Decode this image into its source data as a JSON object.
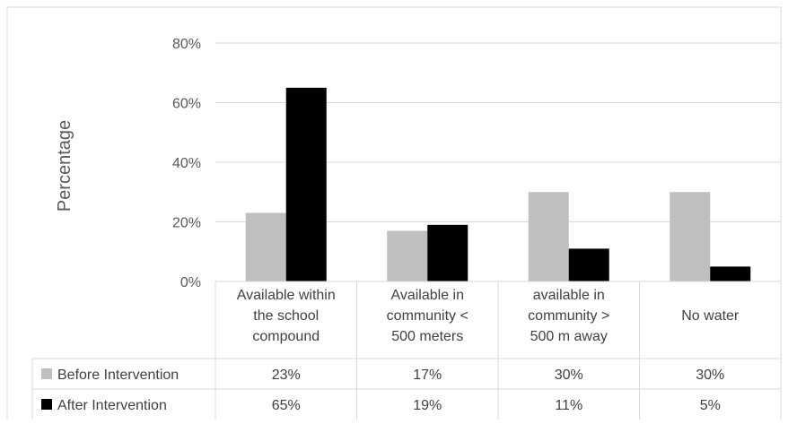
{
  "chart_data": {
    "type": "bar",
    "title": "",
    "xlabel": "",
    "ylabel": "Percentage",
    "ylim": [
      0,
      80
    ],
    "ytick_labels": [
      "0%",
      "20%",
      "40%",
      "60%",
      "80%"
    ],
    "categories": [
      [
        "Available within",
        "the school",
        "compound"
      ],
      [
        "Available in",
        "community <",
        "500 meters"
      ],
      [
        "available in",
        "community >",
        "500 m away"
      ],
      [
        "No water"
      ]
    ],
    "series": [
      {
        "name": "Before Intervention",
        "color": "#bfbfbf",
        "values": [
          23,
          17,
          30,
          30
        ],
        "labels": [
          "23%",
          "17%",
          "30%",
          "30%"
        ]
      },
      {
        "name": "After Intervention",
        "color": "#000000",
        "values": [
          65,
          19,
          11,
          5
        ],
        "labels": [
          "65%",
          "19%",
          "11%",
          "5%"
        ]
      }
    ],
    "gridlines": true,
    "legend": "data-table-below"
  }
}
